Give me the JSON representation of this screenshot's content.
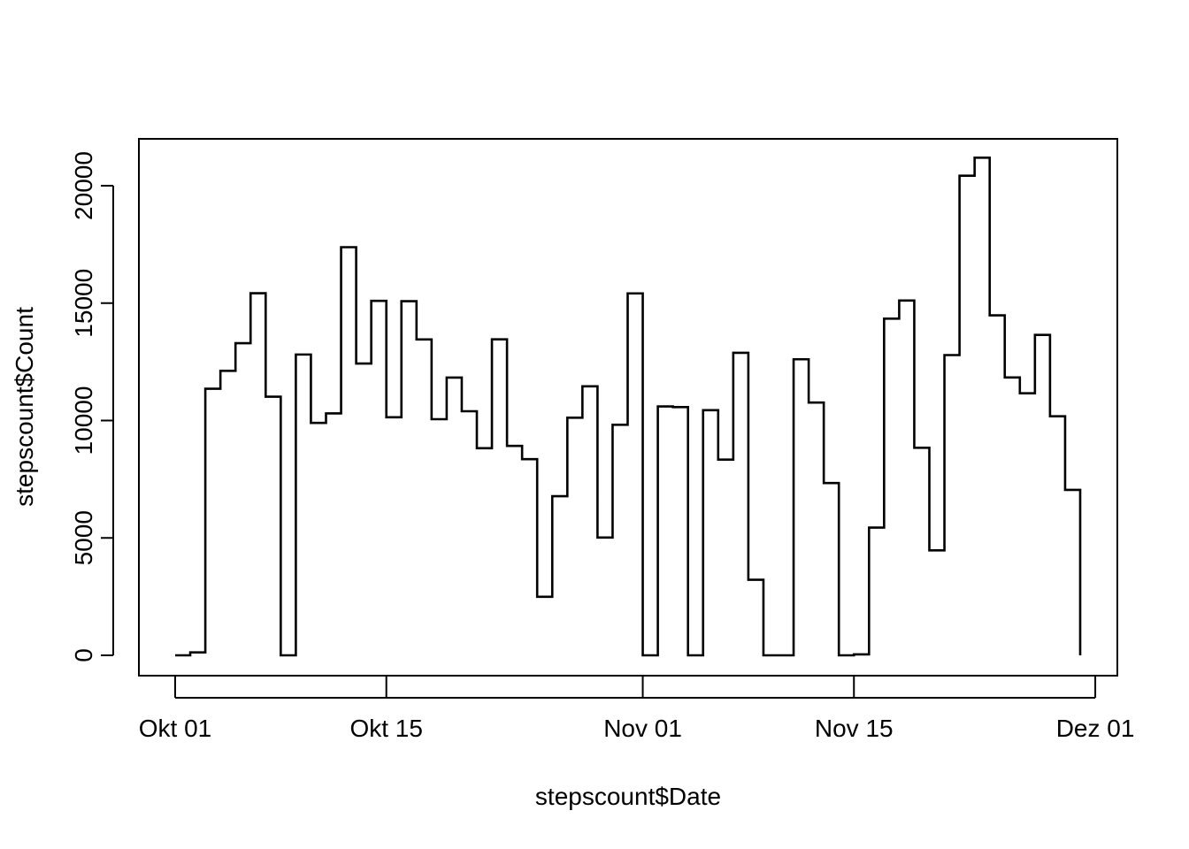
{
  "chart_data": {
    "type": "line",
    "step": true,
    "xlabel": "stepscount$Date",
    "ylabel": "stepscount$Count",
    "xlim": [
      "2012-09-30",
      "2012-12-01"
    ],
    "ylim": [
      -1000,
      22000
    ],
    "x_ticks": [
      "2012-10-01",
      "2012-10-15",
      "2012-11-01",
      "2012-11-15",
      "2012-12-01"
    ],
    "x_tick_labels": [
      "Okt 01",
      "Okt 15",
      "Nov 01",
      "Nov 15",
      "Dez 01"
    ],
    "y_ticks": [
      0,
      5000,
      10000,
      15000,
      20000
    ],
    "y_tick_labels": [
      "0",
      "5000",
      "10000",
      "15000",
      "20000"
    ],
    "x": [
      "2012-10-01",
      "2012-10-02",
      "2012-10-03",
      "2012-10-04",
      "2012-10-05",
      "2012-10-06",
      "2012-10-07",
      "2012-10-08",
      "2012-10-09",
      "2012-10-10",
      "2012-10-11",
      "2012-10-12",
      "2012-10-13",
      "2012-10-14",
      "2012-10-15",
      "2012-10-16",
      "2012-10-17",
      "2012-10-18",
      "2012-10-19",
      "2012-10-20",
      "2012-10-21",
      "2012-10-22",
      "2012-10-23",
      "2012-10-24",
      "2012-10-25",
      "2012-10-26",
      "2012-10-27",
      "2012-10-28",
      "2012-10-29",
      "2012-10-30",
      "2012-10-31",
      "2012-11-01",
      "2012-11-02",
      "2012-11-03",
      "2012-11-04",
      "2012-11-05",
      "2012-11-06",
      "2012-11-07",
      "2012-11-08",
      "2012-11-09",
      "2012-11-10",
      "2012-11-11",
      "2012-11-12",
      "2012-11-13",
      "2012-11-14",
      "2012-11-15",
      "2012-11-16",
      "2012-11-17",
      "2012-11-18",
      "2012-11-19",
      "2012-11-20",
      "2012-11-21",
      "2012-11-22",
      "2012-11-23",
      "2012-11-24",
      "2012-11-25",
      "2012-11-26",
      "2012-11-27",
      "2012-11-28",
      "2012-11-29",
      "2012-11-30"
    ],
    "y": [
      0,
      126,
      11352,
      12116,
      13294,
      15420,
      11015,
      0,
      12811,
      9900,
      10304,
      17382,
      12426,
      15098,
      10139,
      15084,
      13452,
      10056,
      11829,
      10395,
      8821,
      13460,
      8918,
      8355,
      2492,
      6778,
      10119,
      11458,
      5018,
      9819,
      15414,
      0,
      10600,
      10571,
      0,
      10439,
      8334,
      12883,
      3219,
      0,
      0,
      12608,
      10765,
      7336,
      0,
      41,
      5441,
      14339,
      15110,
      8841,
      4472,
      12787,
      20427,
      21194,
      14478,
      11834,
      11162,
      13646,
      10183,
      7047,
      0
    ]
  }
}
